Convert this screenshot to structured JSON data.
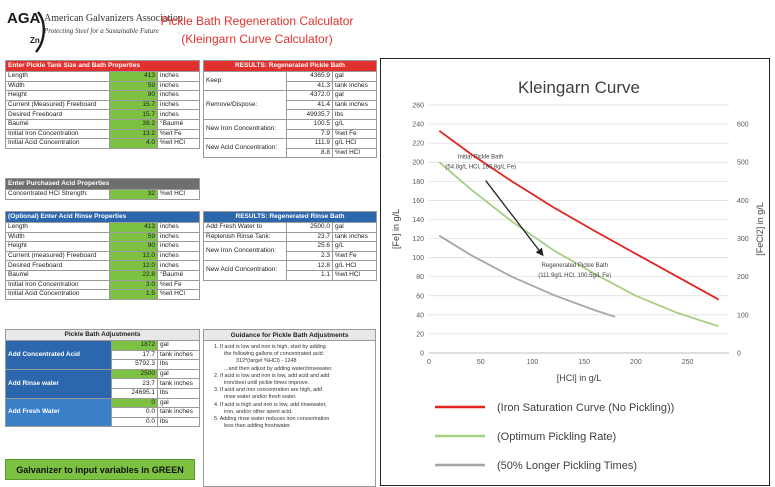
{
  "logo": {
    "abbr": "AGA",
    "zn": "Zn",
    "name": "American Galvanizers Association",
    "tagline": "Protecting Steel for a Sustainable Future"
  },
  "app": {
    "title": "Pickle Bath Regeneration Calculator",
    "subtitle": "(Kleingarn Curve Calculator)"
  },
  "tank": {
    "header": "Enter Pickle Tank Size and Bath Properties",
    "rows": [
      {
        "label": "Length",
        "value": "413",
        "unit": "inches"
      },
      {
        "label": "Width",
        "value": "59",
        "unit": "inches"
      },
      {
        "label": "Height",
        "value": "90",
        "unit": "inches"
      },
      {
        "label": "Current (Measured) Freeboard",
        "value": "15.7",
        "unit": "inches"
      },
      {
        "label": "Desired Freeboard",
        "value": "15.7",
        "unit": "inches"
      },
      {
        "label": "Baumé",
        "value": "39.2",
        "unit": "°Baumé"
      },
      {
        "label": "Initial Iron Concentration",
        "value": "13.2",
        "unit": "%wt Fe"
      },
      {
        "label": "Initial Acid Concentration",
        "value": "4.0",
        "unit": "%wt HCl"
      }
    ]
  },
  "acid": {
    "header": "Enter Purchased Acid Properties",
    "rows": [
      {
        "label": "Concentrated HCl Strength:",
        "value": "32",
        "unit": "%wt HCl"
      }
    ]
  },
  "rinse": {
    "header": "(Optional) Enter Acid Rinse Properties",
    "rows": [
      {
        "label": "Length",
        "value": "413",
        "unit": "inches"
      },
      {
        "label": "Width",
        "value": "59",
        "unit": "inches"
      },
      {
        "label": "Height",
        "value": "90",
        "unit": "inches"
      },
      {
        "label": "Current (measured) Freeboard",
        "value": "12.0",
        "unit": "inches"
      },
      {
        "label": "Desired Freeboard",
        "value": "12.0",
        "unit": "inches"
      },
      {
        "label": "Baumé",
        "value": "22.8",
        "unit": "°Baumé"
      },
      {
        "label": "Initial Iron Concentration",
        "value": "3.0",
        "unit": "%wt Fe"
      },
      {
        "label": "Initial Acid Concentration",
        "value": "1.5",
        "unit": "%wt HCl"
      }
    ]
  },
  "results_pickle": {
    "header": "RESULTS:  Regenerated Pickle Bath",
    "keep_label": "Keep:",
    "keep": [
      {
        "value": "4365.9",
        "unit": "gal"
      },
      {
        "value": "41.3",
        "unit": "tank inches"
      }
    ],
    "remove_label": "Remove/Dispose:",
    "remove": [
      {
        "value": "4372.0",
        "unit": "gal"
      },
      {
        "value": "41.4",
        "unit": "tank inches"
      },
      {
        "value": "49935.7",
        "unit": "lbs"
      }
    ],
    "iron_label": "New Iron Concentration:",
    "iron": [
      {
        "value": "100.5",
        "unit": "g/L"
      },
      {
        "value": "7.9",
        "unit": "%wt Fe"
      }
    ],
    "acid_label": "New Acid Concentration:",
    "acid": [
      {
        "value": "111.9",
        "unit": "g/L HCl"
      },
      {
        "value": "8.8",
        "unit": "%wt HCl"
      }
    ]
  },
  "results_rinse": {
    "header": "RESULTS:  Regenerated Rinse Bath",
    "add_label_1": "Add Fresh Water to",
    "add_label_2": "Replenish Rinse Tank:",
    "add": [
      {
        "value": "2500.0",
        "unit": "gal"
      },
      {
        "value": "23.7",
        "unit": "tank inches"
      }
    ],
    "iron_label": "New Iron Concentration:",
    "iron": [
      {
        "value": "25.6",
        "unit": "g/L"
      },
      {
        "value": "2.3",
        "unit": "%wt Fe"
      }
    ],
    "acid_label": "New Acid Concentration:",
    "acid": [
      {
        "value": "12.8",
        "unit": "g/L HCl"
      },
      {
        "value": "1.1",
        "unit": "%wt HCl"
      }
    ]
  },
  "adjustments": {
    "header": "Pickle Bath Adjustments",
    "conc": {
      "label": "Add Concentrated Acid",
      "rows": [
        {
          "value": "1872",
          "unit": "gal"
        },
        {
          "value": "17.7",
          "unit": "tank inches"
        },
        {
          "value": "5792.3",
          "unit": "lbs"
        }
      ]
    },
    "rinse": {
      "label": "Add Rinse water",
      "rows": [
        {
          "value": "2500",
          "unit": "gal"
        },
        {
          "value": "23.7",
          "unit": "tank inches"
        },
        {
          "value": "24695.1",
          "unit": "lbs"
        }
      ]
    },
    "fresh": {
      "label": "Add Fresh Water",
      "rows": [
        {
          "value": "0",
          "unit": "gal"
        },
        {
          "value": "0.0",
          "unit": "tank inches"
        },
        {
          "value": "0.0",
          "unit": "lbs"
        }
      ]
    }
  },
  "guidance": {
    "header": "Guidance for Pickle Bath Adjustments",
    "lines": [
      "1.  If acid is low and iron is high, start by adding",
      "the following gallons of concentrated acid:",
      "312*(target %HCl) - 1248",
      "...and then adjust by adding water/rinsewater.",
      "2.  If acid is low and iron is low, add acid and add",
      "iron/steel until pickle times improve.",
      "3.  If acid and iron concentration are high, add",
      "rinse water and/or fresh water.",
      "4.  If acid is high and iron is low, add rinsewater,",
      "iron, and/or other spent acid.",
      "5.  Adding rinse water reduces iron concentration",
      "less than adding freshwater."
    ]
  },
  "note": "Galvanizer to input variables in GREEN",
  "chart_data": {
    "type": "line",
    "title": "Kleingarn Curve",
    "xlabel": "[HCl] in g/L",
    "ylabel": "[Fe] in g/L",
    "y2label": "[FeCl2] in g/L",
    "xlim": [
      0,
      290
    ],
    "ylim": [
      0,
      260
    ],
    "y2lim": [
      0,
      650
    ],
    "xticks": [
      0,
      50,
      100,
      150,
      200,
      250
    ],
    "yticks": [
      0,
      20,
      40,
      60,
      80,
      100,
      120,
      140,
      160,
      180,
      200,
      220,
      240,
      260
    ],
    "y2ticks": [
      0,
      100,
      200,
      300,
      400,
      500,
      600
    ],
    "series": [
      {
        "name": "(Iron Saturation Curve (No Pickling))",
        "color": "#e3231f",
        "x": [
          10,
          40,
          80,
          120,
          160,
          200,
          240,
          280
        ],
        "y": [
          233,
          209,
          180,
          153,
          128,
          104,
          80,
          56
        ]
      },
      {
        "name": "(Optimum Pickling Rate)",
        "color": "#a6cf84",
        "x": [
          10,
          40,
          80,
          120,
          160,
          200,
          240,
          280
        ],
        "y": [
          200,
          172,
          138,
          108,
          83,
          60,
          42,
          28
        ]
      },
      {
        "name": "(50% Longer Pickling Times)",
        "color": "#a6a6a6",
        "x": [
          10,
          40,
          80,
          120,
          160,
          180
        ],
        "y": [
          123,
          103,
          80,
          61,
          45,
          38
        ]
      }
    ],
    "annotations": [
      {
        "text_1": "Initial Pickle Bath",
        "text_2": "(54.8g/L HCl, 180.8g/L Fe)",
        "x": 54.8,
        "y": 180.8
      },
      {
        "text_1": "Regenerated Pickle Bath",
        "text_2": "(111.9g/L HCl, 100.5g/L Fe)",
        "x": 111.9,
        "y": 100.5
      }
    ]
  }
}
